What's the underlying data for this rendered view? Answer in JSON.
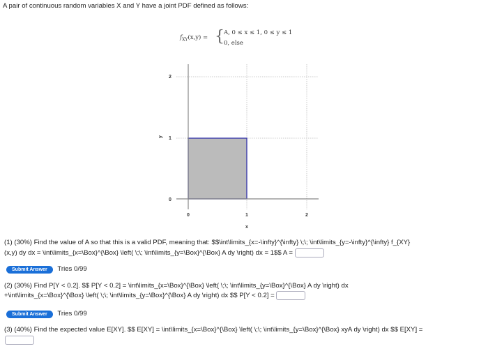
{
  "intro": "A pair of continuous random variables X and Y have a joint PDF defined as follows:",
  "formula": {
    "lhs": "f",
    "sub": "XY",
    "args": "(x,y) =",
    "case1": "A,  0 ≤ x ≤ 1, 0 ≤ y ≤ 1",
    "case2": "0,  else"
  },
  "chart_data": {
    "type": "area",
    "xlabel": "x",
    "ylabel": "y",
    "xlim": [
      0,
      2
    ],
    "ylim": [
      0,
      2
    ],
    "xticks": [
      "0",
      "1",
      "2"
    ],
    "yticks": [
      "0",
      "1",
      "2"
    ],
    "grid": true,
    "region": {
      "x": [
        0,
        1
      ],
      "y": [
        0,
        1
      ],
      "fill": "#bbbbbb",
      "stroke": "#3333aa"
    }
  },
  "q1": {
    "line1": "(1) (30%) Find the value of A so that this is a valid PDF, meaning that: $$\\int\\limits_{x=-\\infty}^{\\infty} \\;\\; \\int\\limits_{y=-\\infty}^{\\infty} f_{XY}",
    "line2": "(x,y) dy dx = \\int\\limits_{x=\\Box}^{\\Box} \\left( \\;\\; \\int\\limits_{y=\\Box}^{\\Box} A dy \\right) dx = 1$$ A ="
  },
  "submit_label": "Submit Answer",
  "tries": "Tries 0/99",
  "q2": {
    "line1": "(2) (30%) Find P[Y < 0.2]. $$ P[Y < 0.2] = \\int\\limits_{x=\\Box}^{\\Box} \\left( \\;\\; \\int\\limits_{y=\\Box}^{\\Box} A dy \\right) dx",
    "line2": "+\\int\\limits_{x=\\Box}^{\\Box} \\left( \\;\\; \\int\\limits_{y=\\Box}^{\\Box} A dy \\right) dx $$ P[Y < 0.2] ="
  },
  "q3": {
    "line1": "(3) (40%) Find the expected value E[XY]. $$ E[XY] = \\int\\limits_{x=\\Box}^{\\Box} \\left( \\;\\; \\int\\limits_{y=\\Box}^{\\Box} xyA dy \\right) dx $$ E[XY] ="
  }
}
